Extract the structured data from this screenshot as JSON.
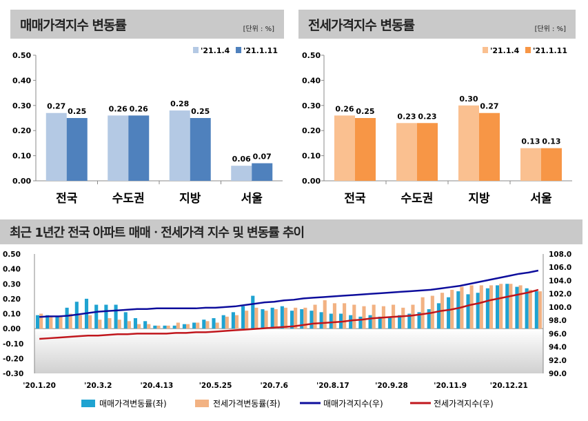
{
  "chart_data": [
    {
      "type": "bar",
      "title": "매매가격지수 변동률",
      "unit": "[단위 : %]",
      "categories": [
        "전국",
        "수도권",
        "지방",
        "서울"
      ],
      "series": [
        {
          "name": "'21.1.4",
          "values": [
            0.27,
            0.26,
            0.28,
            0.06
          ],
          "color": "#b4c9e4"
        },
        {
          "name": "'21.1.11",
          "values": [
            0.25,
            0.26,
            0.25,
            0.07
          ],
          "color": "#4f81bd"
        }
      ],
      "ylim": [
        0,
        0.5
      ],
      "yticks": [
        "0.00",
        "0.10",
        "0.20",
        "0.30",
        "0.40",
        "0.50"
      ],
      "legend": "top-right"
    },
    {
      "type": "bar",
      "title": "전세가격지수 변동률",
      "unit": "[단위 : %]",
      "categories": [
        "전국",
        "수도권",
        "지방",
        "서울"
      ],
      "series": [
        {
          "name": "'21.1.4",
          "values": [
            0.26,
            0.23,
            0.3,
            0.13
          ],
          "color": "#fac090"
        },
        {
          "name": "'21.1.11",
          "values": [
            0.25,
            0.23,
            0.27,
            0.13
          ],
          "color": "#f79646"
        }
      ],
      "ylim": [
        0,
        0.5
      ],
      "yticks": [
        "0.00",
        "0.10",
        "0.20",
        "0.30",
        "0.40",
        "0.50"
      ],
      "legend": "top-right"
    },
    {
      "type": "bar+line",
      "title": "최근 1년간 전국 아파트 매매ㆍ전세가격 지수 및 변동률 추이",
      "xticks": [
        "'20.1.20",
        "'20.3.2",
        "'20.4.13",
        "'20.5.25",
        "'20.7.6",
        "'20.8.17",
        "'20.9.28",
        "'20.11.9",
        "'20.12.21"
      ],
      "ylim_left": [
        -0.3,
        0.5
      ],
      "yticks_left": [
        "-0.30",
        "-0.20",
        "-0.10",
        "0.00",
        "0.10",
        "0.20",
        "0.30",
        "0.40",
        "0.50"
      ],
      "ylim_right": [
        90,
        108
      ],
      "yticks_right": [
        "90.0",
        "92.0",
        "94.0",
        "96.0",
        "98.0",
        "100.0",
        "102.0",
        "104.0",
        "106.0",
        "108.0"
      ],
      "series": [
        {
          "name": "매매가격변동률(좌)",
          "kind": "bar",
          "axis": "left",
          "color": "#1fa3d1",
          "values": [
            0.09,
            0.09,
            0.08,
            0.14,
            0.18,
            0.2,
            0.16,
            0.16,
            0.16,
            0.11,
            0.07,
            0.05,
            0.02,
            0.02,
            0.02,
            0.03,
            0.04,
            0.06,
            0.07,
            0.09,
            0.11,
            0.15,
            0.22,
            0.13,
            0.14,
            0.15,
            0.12,
            0.13,
            0.12,
            0.11,
            0.1,
            0.1,
            0.09,
            0.08,
            0.09,
            0.08,
            0.08,
            0.09,
            0.1,
            0.11,
            0.13,
            0.17,
            0.21,
            0.25,
            0.23,
            0.24,
            0.27,
            0.29,
            0.3,
            0.28,
            0.27,
            0.25
          ]
        },
        {
          "name": "전세가격변동률(좌)",
          "kind": "bar",
          "axis": "left",
          "color": "#f2b283",
          "values": [
            0.1,
            0.08,
            0.08,
            0.1,
            0.09,
            0.09,
            0.06,
            0.07,
            0.06,
            0.05,
            0.03,
            0.03,
            0.02,
            0.02,
            0.04,
            0.03,
            0.04,
            0.05,
            0.04,
            0.08,
            0.09,
            0.12,
            0.14,
            0.12,
            0.13,
            0.14,
            0.14,
            0.14,
            0.16,
            0.19,
            0.17,
            0.17,
            0.16,
            0.15,
            0.16,
            0.15,
            0.16,
            0.14,
            0.16,
            0.21,
            0.22,
            0.24,
            0.26,
            0.28,
            0.29,
            0.29,
            0.29,
            0.3,
            0.3,
            0.29,
            0.26,
            0.25
          ]
        },
        {
          "name": "매매가격지수(우)",
          "kind": "line",
          "axis": "right",
          "color": "#0d0d9c",
          "values": [
            98.5,
            98.6,
            98.6,
            98.7,
            98.9,
            99.1,
            99.3,
            99.4,
            99.5,
            99.6,
            99.7,
            99.7,
            99.8,
            99.8,
            99.8,
            99.8,
            99.8,
            99.9,
            99.9,
            100.0,
            100.1,
            100.3,
            100.5,
            100.7,
            100.8,
            101.0,
            101.1,
            101.3,
            101.4,
            101.5,
            101.6,
            101.7,
            101.8,
            101.9,
            102.0,
            102.1,
            102.2,
            102.3,
            102.4,
            102.5,
            102.6,
            102.8,
            103.0,
            103.2,
            103.5,
            103.8,
            104.1,
            104.4,
            104.7,
            105.0,
            105.2,
            105.5
          ]
        },
        {
          "name": "전세가격지수(우)",
          "kind": "line",
          "axis": "right",
          "color": "#c0161c",
          "values": [
            95.2,
            95.3,
            95.4,
            95.5,
            95.6,
            95.7,
            95.7,
            95.8,
            95.9,
            95.9,
            96.0,
            96.0,
            96.0,
            96.0,
            96.1,
            96.1,
            96.2,
            96.2,
            96.3,
            96.4,
            96.5,
            96.6,
            96.7,
            96.8,
            96.9,
            97.0,
            97.1,
            97.3,
            97.5,
            97.6,
            97.7,
            97.8,
            98.0,
            98.1,
            98.3,
            98.4,
            98.5,
            98.6,
            98.7,
            98.9,
            99.1,
            99.4,
            99.6,
            99.9,
            100.3,
            100.6,
            101.0,
            101.3,
            101.6,
            101.9,
            102.2,
            102.6
          ]
        }
      ],
      "legend": "bottom"
    }
  ]
}
